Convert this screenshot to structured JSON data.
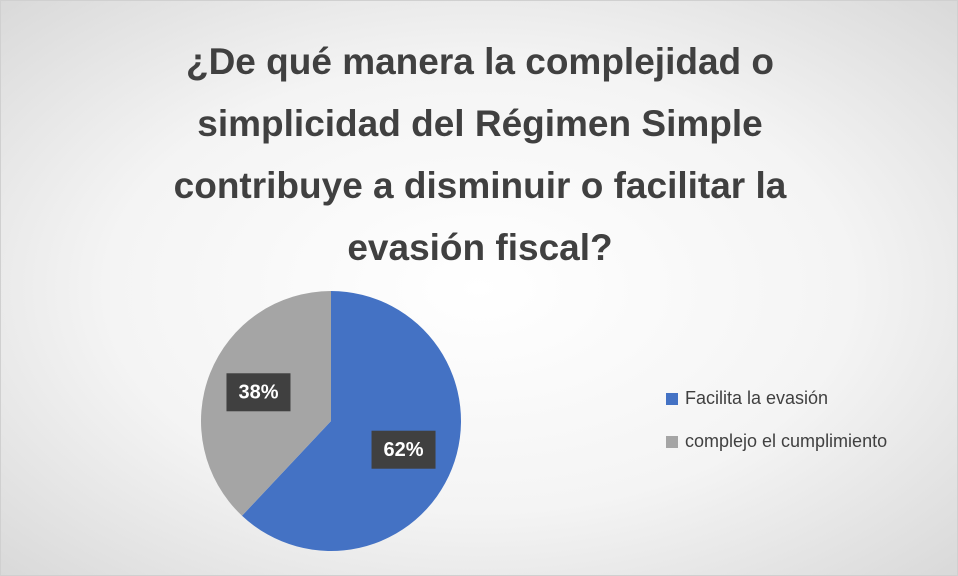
{
  "chart_data": {
    "type": "pie",
    "title": "¿De qué manera la complejidad o simplicidad del Régimen Simple contribuye a disminuir o facilitar la evasión fiscal?",
    "categories": [
      "Facilita la evasión",
      "complejo el cumplimiento"
    ],
    "values": [
      62,
      38
    ],
    "value_labels": [
      "62%",
      "38%"
    ],
    "colors": [
      "#4472c4",
      "#a5a5a5"
    ],
    "legend": "right"
  }
}
